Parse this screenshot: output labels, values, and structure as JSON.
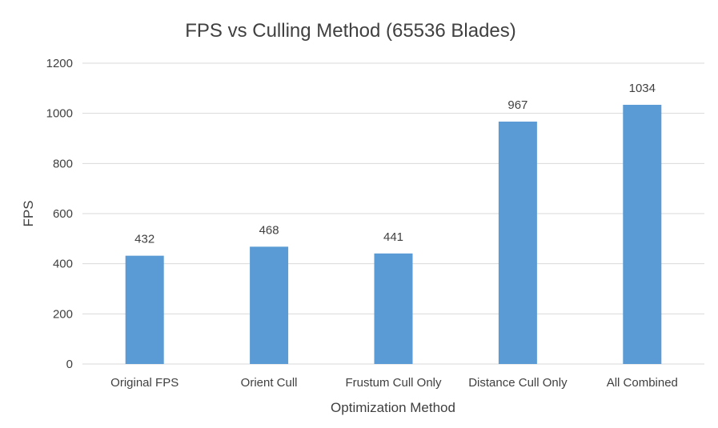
{
  "chart_data": {
    "type": "bar",
    "title": "FPS vs Culling Method (65536 Blades)",
    "xlabel": "Optimization Method",
    "ylabel": "FPS",
    "categories": [
      "Original FPS",
      "Orient Cull",
      "Frustum Cull Only",
      "Distance Cull Only",
      "All Combined"
    ],
    "values": [
      432,
      468,
      441,
      967,
      1034
    ],
    "ylim": [
      0,
      1200
    ],
    "yticks": [
      0,
      200,
      400,
      600,
      800,
      1000,
      1200
    ],
    "grid": true,
    "legend": "none",
    "bar_color": "#5b9bd5"
  }
}
